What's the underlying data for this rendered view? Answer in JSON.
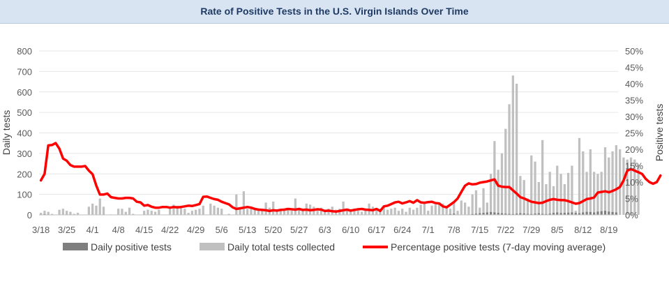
{
  "chart_data": {
    "type": "bar+line",
    "title": "Rate of Positive Tests in the U.S. Virgin Islands Over Time",
    "ylabel_left": "Daily tests",
    "ylabel_right": "Positive tests",
    "ylim_left": [
      0,
      800
    ],
    "ylim_right": [
      0,
      50
    ],
    "y_ticks_left": [
      "0",
      "100",
      "200",
      "300",
      "400",
      "500",
      "600",
      "700",
      "800"
    ],
    "y_ticks_right": [
      "0%",
      "5%",
      "10%",
      "15%",
      "20%",
      "25%",
      "30%",
      "35%",
      "40%",
      "45%",
      "50%"
    ],
    "x_tick_labels": [
      "3/18",
      "3/25",
      "4/1",
      "4/8",
      "4/15",
      "4/22",
      "4/29",
      "5/6",
      "5/13",
      "5/20",
      "5/27",
      "6/3",
      "6/10",
      "6/17",
      "6/24",
      "7/1",
      "7/8",
      "7/15",
      "7/22",
      "7/29",
      "8/5",
      "8/12",
      "8/19"
    ],
    "x_start_label": "3/18",
    "days": 157,
    "legend_position": "bottom",
    "series": [
      {
        "name": "Daily positive tests",
        "color": "#7f7f7f",
        "values": [
          2,
          3,
          2,
          1,
          0,
          0,
          1,
          2,
          2,
          1,
          0,
          1,
          0,
          0,
          0,
          0,
          1,
          2,
          1,
          2,
          1,
          1,
          0,
          0,
          1,
          0,
          1,
          1,
          0,
          0,
          0,
          1,
          0,
          0,
          1,
          0,
          0,
          1,
          0,
          0,
          0,
          0,
          0,
          0,
          0,
          0,
          0,
          0,
          0,
          0,
          0,
          0,
          0,
          0,
          0,
          0,
          0,
          0,
          0,
          0,
          0,
          0,
          0,
          0,
          0,
          0,
          0,
          0,
          0,
          0,
          0,
          0,
          0,
          0,
          0,
          0,
          0,
          0,
          0,
          0,
          0,
          0,
          0,
          0,
          0,
          0,
          0,
          0,
          0,
          0,
          0,
          0,
          0,
          1,
          0,
          1,
          0,
          2,
          1,
          0,
          1,
          0,
          0,
          1,
          0,
          1,
          0,
          0,
          0,
          2,
          0,
          4,
          6,
          2,
          1,
          0,
          2,
          4,
          6,
          8,
          10,
          12,
          14,
          12,
          10,
          8,
          6,
          5,
          4,
          6,
          8,
          7,
          5,
          4,
          6,
          8,
          5,
          4,
          6,
          10,
          12,
          9,
          10,
          11,
          12,
          10,
          8,
          12,
          15,
          14,
          12,
          16,
          18,
          20,
          16,
          14,
          12
        ]
      },
      {
        "name": "Daily total tests collected",
        "color": "#c0c0c0",
        "values": [
          10,
          20,
          15,
          5,
          0,
          25,
          30,
          20,
          15,
          5,
          10,
          0,
          0,
          40,
          55,
          45,
          80,
          40,
          0,
          0,
          0,
          30,
          30,
          15,
          35,
          5,
          0,
          0,
          20,
          25,
          20,
          15,
          25,
          0,
          0,
          30,
          50,
          45,
          40,
          30,
          10,
          20,
          25,
          30,
          45,
          0,
          55,
          45,
          35,
          30,
          0,
          5,
          0,
          100,
          30,
          115,
          30,
          40,
          35,
          25,
          20,
          60,
          35,
          65,
          20,
          25,
          30,
          25,
          20,
          80,
          25,
          30,
          55,
          50,
          40,
          20,
          35,
          25,
          30,
          40,
          25,
          30,
          65,
          30,
          25,
          30,
          20,
          15,
          25,
          55,
          40,
          25,
          30,
          40,
          25,
          30,
          35,
          20,
          30,
          15,
          35,
          25,
          35,
          50,
          55,
          20,
          45,
          50,
          60,
          55,
          45,
          30,
          60,
          20,
          70,
          60,
          40,
          100,
          120,
          35,
          130,
          60,
          200,
          360,
          220,
          300,
          420,
          540,
          680,
          640,
          190,
          170,
          80,
          290,
          260,
          160,
          365,
          150,
          210,
          140,
          240,
          200,
          150,
          205,
          240,
          20,
          375,
          310,
          210,
          320,
          210,
          200,
          210,
          330,
          280,
          310,
          340,
          320,
          280,
          270,
          280,
          270,
          245
        ]
      },
      {
        "name": "Percentage positive tests (7-day moving average)",
        "color": "#ff0000",
        "values": [
          10.5,
          12.5,
          21.2,
          21.3,
          21.9,
          20.2,
          17.2,
          16.5,
          15.2,
          14.7,
          14.7,
          14.7,
          14.9,
          13.5,
          12.4,
          9.0,
          6.2,
          6.2,
          6.5,
          5.4,
          5.2,
          5.0,
          5.0,
          5.2,
          5.2,
          5.0,
          4.0,
          3.8,
          2.8,
          3.0,
          2.5,
          2.2,
          2.2,
          2.4,
          2.4,
          2.2,
          2.4,
          2.3,
          2.4,
          2.6,
          2.8,
          2.7,
          3.0,
          3.3,
          5.5,
          5.6,
          5.2,
          4.8,
          4.6,
          4.0,
          3.6,
          3.2,
          2.3,
          1.8,
          2.0,
          2.2,
          2.4,
          2.2,
          1.8,
          1.6,
          1.5,
          1.4,
          1.2,
          1.4,
          1.3,
          1.5,
          1.6,
          1.8,
          1.7,
          1.6,
          1.8,
          1.5,
          1.6,
          1.4,
          1.5,
          1.7,
          1.6,
          1.2,
          1.3,
          1.1,
          1.0,
          1.2,
          1.4,
          1.6,
          1.3,
          1.5,
          1.7,
          1.8,
          1.6,
          1.5,
          1.4,
          1.8,
          1.2,
          2.6,
          2.8,
          3.3,
          3.8,
          4.0,
          3.5,
          3.8,
          4.2,
          3.7,
          4.5,
          3.8,
          3.7,
          3.9,
          4.0,
          3.6,
          3.5,
          2.6,
          2.3,
          3.1,
          3.9,
          5.0,
          7.0,
          8.9,
          9.6,
          9.3,
          9.4,
          9.8,
          10.0,
          10.2,
          10.5,
          10.8,
          8.9,
          8.6,
          8.5,
          8.5,
          7.5,
          6.5,
          5.4,
          5.0,
          4.5,
          4.0,
          3.8,
          3.6,
          3.7,
          4.2,
          4.6,
          4.8,
          4.6,
          4.5,
          4.5,
          4.2,
          3.8,
          3.4,
          3.6,
          4.2,
          4.8,
          5.0,
          5.3,
          6.8,
          7.0,
          7.2,
          6.9,
          7.3,
          7.8,
          8.5,
          10.5,
          13.5,
          14.0,
          13.5,
          13.0,
          12.5,
          11.0,
          10.0,
          9.5,
          10.0,
          12.0
        ]
      }
    ]
  }
}
